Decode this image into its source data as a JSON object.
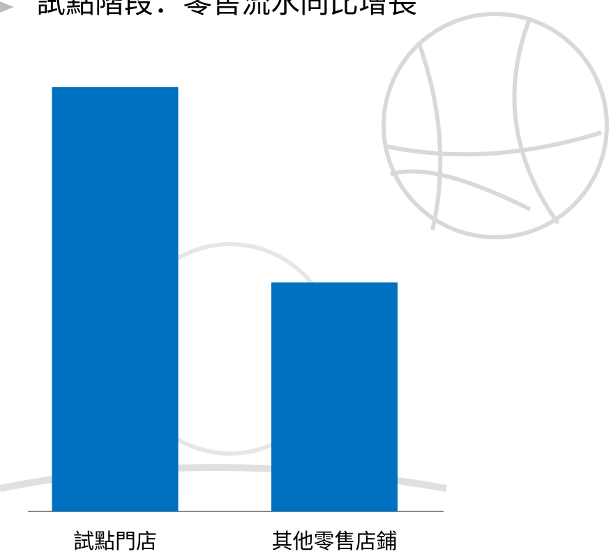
{
  "chart_data": {
    "type": "bar",
    "title": "試點階段：零售流水同比增長",
    "categories": [
      "試點門店",
      "其他零售店鋪"
    ],
    "values": [
      100,
      54
    ],
    "color": "#0070c0"
  }
}
